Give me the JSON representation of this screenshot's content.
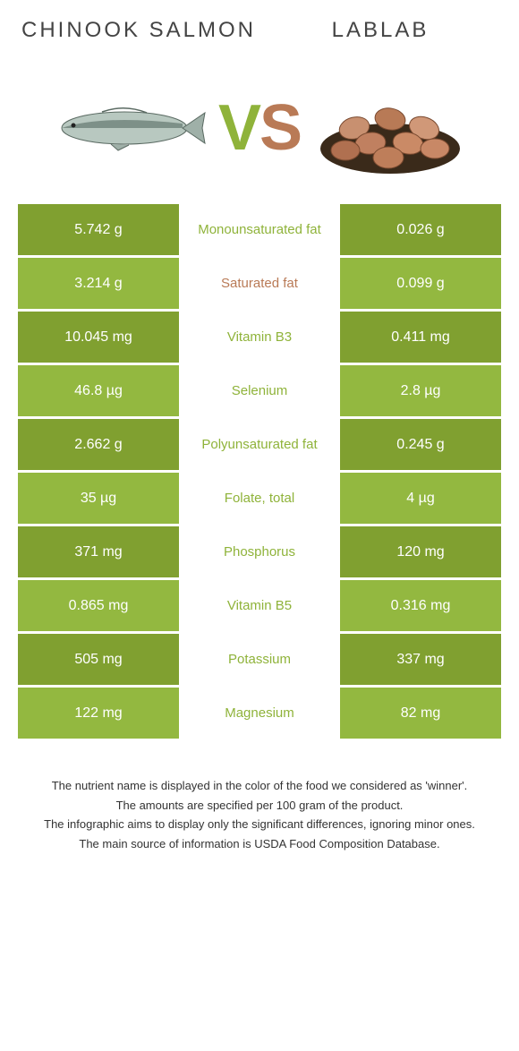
{
  "colors": {
    "salmon_green": "#8fb33a",
    "lablab_brown": "#b97a56",
    "green_dark": "#80a030",
    "green_light": "#93b840"
  },
  "header": {
    "left": "Chinook Salmon",
    "right": "Lablab"
  },
  "vs": {
    "v": "V",
    "s": "S"
  },
  "rows": [
    {
      "left": "5.742 g",
      "label": "Monounsaturated fat",
      "right": "0.026 g",
      "winner": "left"
    },
    {
      "left": "3.214 g",
      "label": "Saturated fat",
      "right": "0.099 g",
      "winner": "right"
    },
    {
      "left": "10.045 mg",
      "label": "Vitamin B3",
      "right": "0.411 mg",
      "winner": "left"
    },
    {
      "left": "46.8 µg",
      "label": "Selenium",
      "right": "2.8 µg",
      "winner": "left"
    },
    {
      "left": "2.662 g",
      "label": "Polyunsaturated fat",
      "right": "0.245 g",
      "winner": "left"
    },
    {
      "left": "35 µg",
      "label": "Folate, total",
      "right": "4 µg",
      "winner": "left"
    },
    {
      "left": "371 mg",
      "label": "Phosphorus",
      "right": "120 mg",
      "winner": "left"
    },
    {
      "left": "0.865 mg",
      "label": "Vitamin B5",
      "right": "0.316 mg",
      "winner": "left"
    },
    {
      "left": "505 mg",
      "label": "Potassium",
      "right": "337 mg",
      "winner": "left"
    },
    {
      "left": "122 mg",
      "label": "Magnesium",
      "right": "82 mg",
      "winner": "left"
    }
  ],
  "footer": {
    "l1": "The nutrient name is displayed in the color of the food we considered as 'winner'.",
    "l2": "The amounts are specified per 100 gram of the product.",
    "l3": "The infographic aims to display only the significant differences, ignoring minor ones.",
    "l4": "The main source of information is USDA Food Composition Database."
  }
}
